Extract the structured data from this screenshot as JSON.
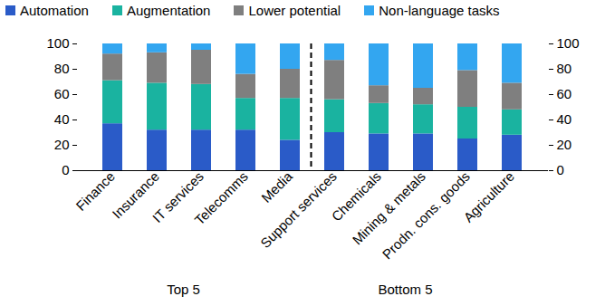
{
  "chart_data": {
    "type": "bar",
    "stacked": true,
    "legend": "top",
    "categories": [
      "Finance",
      "Insurance",
      "IT services",
      "Telecomms",
      "Media",
      "Support services",
      "Chemicals",
      "Mining & metals",
      "Prodn. cons. goods",
      "Agriculture"
    ],
    "series": [
      {
        "name": "Automation",
        "color": "#2a5bc8",
        "values": [
          37,
          32,
          32,
          32,
          24,
          30,
          29,
          29,
          25,
          28
        ]
      },
      {
        "name": "Augmentation",
        "color": "#1ab3a0",
        "values": [
          34,
          37,
          36,
          25,
          33,
          26,
          24,
          23,
          25,
          20
        ]
      },
      {
        "name": "Lower potential",
        "color": "#7f7f7f",
        "values": [
          21,
          24,
          27,
          19,
          23,
          31,
          14,
          13,
          29,
          21
        ]
      },
      {
        "name": "Non-language tasks",
        "color": "#33a6f0",
        "values": [
          8,
          7,
          5,
          24,
          20,
          13,
          33,
          35,
          21,
          31
        ]
      }
    ],
    "groups": [
      {
        "label": "Top 5",
        "categories": [
          "Finance",
          "Insurance",
          "IT services",
          "Telecomms",
          "Media"
        ]
      },
      {
        "label": "Bottom 5",
        "categories": [
          "Support services",
          "Chemicals",
          "Mining & metals",
          "Prodn. cons. goods",
          "Agriculture"
        ]
      }
    ],
    "ylim": [
      0,
      100
    ],
    "yticks": [
      0,
      20,
      40,
      60,
      80,
      100
    ],
    "grid": false
  }
}
